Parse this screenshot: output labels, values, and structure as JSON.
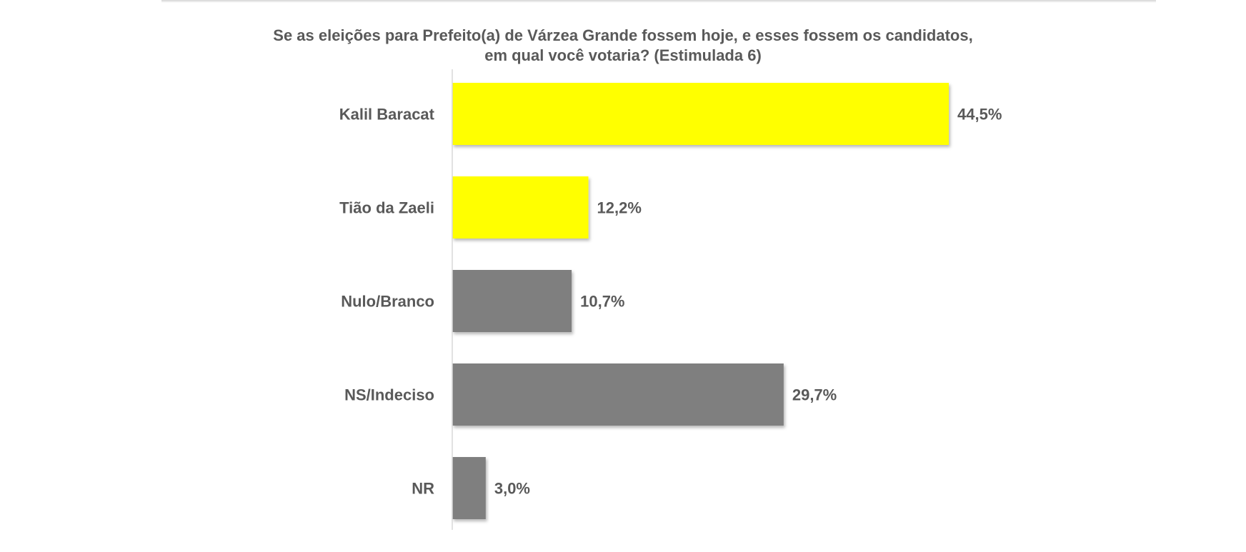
{
  "chart_data": {
    "type": "bar",
    "orientation": "horizontal",
    "title_lines": [
      "Se as eleições para Prefeito(a) de Várzea Grande fossem hoje, e esses fossem os candidatos,",
      "em qual você votaria? (Estimulada 6)"
    ],
    "categories": [
      "Kalil Baracat",
      "Tião da Zaeli",
      "Nulo/Branco",
      "NS/Indeciso",
      "NR"
    ],
    "values": [
      44.5,
      12.2,
      10.7,
      29.7,
      3.0
    ],
    "value_labels": [
      "44,5%",
      "12,2%",
      "10,7%",
      "29,7%",
      "3,0%"
    ],
    "colors": [
      "#FFFF00",
      "#FFFF00",
      "#7F7F7F",
      "#7F7F7F",
      "#7F7F7F"
    ],
    "xlim": [
      0,
      50
    ],
    "grid": false,
    "legend": "none"
  }
}
